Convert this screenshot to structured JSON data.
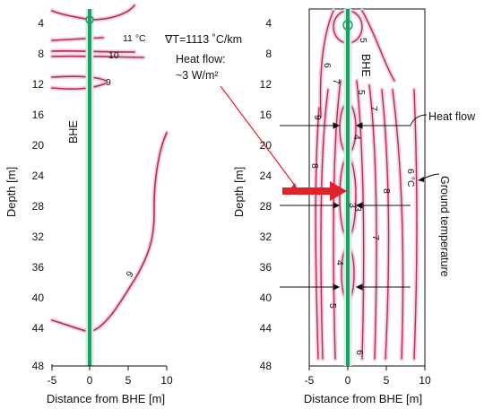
{
  "left_panel": {
    "y_ticks": [
      "4",
      "8",
      "12",
      "16",
      "20",
      "24",
      "28",
      "32",
      "36",
      "40",
      "44",
      "48"
    ],
    "x_ticks": [
      "-5",
      "0",
      "5",
      "10"
    ],
    "y_label": "Depth [m]",
    "x_label": "Distance from BHE [m]",
    "bhe_label": "BHE",
    "contour_labels": [
      "11 °C",
      "10",
      "9",
      "9"
    ]
  },
  "right_panel": {
    "y_ticks": [
      "4",
      "8",
      "12",
      "16",
      "20",
      "24",
      "28",
      "32",
      "36",
      "40",
      "44",
      "48"
    ],
    "x_ticks": [
      "-5",
      "0",
      "5",
      "10"
    ],
    "y_label": "Depth [m]",
    "x_label": "Distance from BHE [m]",
    "bhe_label": "BHE",
    "contour_labels": [
      "5",
      "6",
      "7",
      "9",
      "5",
      "4",
      "7",
      "8",
      "3",
      "3",
      "8",
      "7",
      "4",
      "5",
      "6",
      "6 °C"
    ]
  },
  "annotations": {
    "gradient": "∇T=1113 ˚C/km",
    "heat_flow_title": "Heat flow:",
    "heat_flow_value": "~3 W/m²",
    "heat_flow_label": "Heat flow",
    "ground_temperature_label": "Ground temperature"
  },
  "colors": {
    "contour": "#b0304e",
    "contour_halo": "#f7c9dc",
    "bhe": "#1e9e64",
    "red_arrow": "#e0232a",
    "axis": "#111111"
  }
}
